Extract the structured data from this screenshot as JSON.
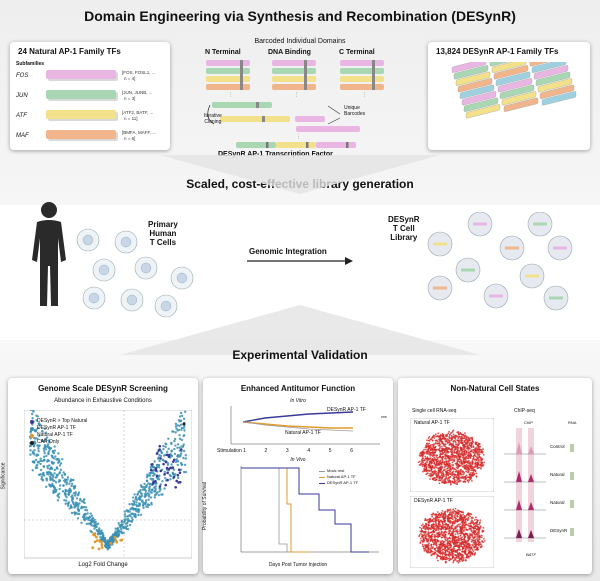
{
  "header": {
    "title": "Domain Engineering via Synthesis and Recombination (DESynR)"
  },
  "top": {
    "left_panel": {
      "title": "24 Natural AP-1 Family TFs",
      "subfamilies_label": "Subfamilies",
      "families": [
        {
          "name": "FOS",
          "members": "[FOS, FOSL1, ...",
          "count": "n = 4]",
          "color": "#e9b6e4"
        },
        {
          "name": "JUN",
          "members": "[JUN, JUNB, ...",
          "count": "n = 3]",
          "color": "#a9d7b4"
        },
        {
          "name": "ATF",
          "members": "[ATF2, BATF, ...",
          "count": "n = 11]",
          "color": "#f3e08a"
        },
        {
          "name": "MAF",
          "members": "[BMFA, MAFF, ...",
          "count": "n = 6]",
          "color": "#f0b58a"
        }
      ]
    },
    "middle_panel": {
      "barcoded_label": "Barcoded Individual Domains",
      "n_terminal": "N Terminal",
      "dna_binding": "DNA Binding",
      "c_terminal": "C Terminal",
      "iterative_cloning": "Iterative\nCloning",
      "unique_barcodes": "Unique\nBarcodes",
      "bottom_label": "DESynR AP-1 Transcription Factor"
    },
    "right_panel": {
      "title": "13,824 DESynR AP-1 Family TFs"
    }
  },
  "scaled_label": "Scaled, cost-effective library generation",
  "middle": {
    "primary_label": "Primary\nHuman\nT Cells",
    "genomic_label": "Genomic Integration",
    "library_label": "DESynR\nT Cell\nLibrary"
  },
  "validation_label": "Experimental Validation",
  "bottom": {
    "screening": {
      "title": "Genome Scale DESynR Screening",
      "subtitle": "Abundance in Exhaustive Conditions",
      "legend": [
        {
          "label": "DESynR > Top Natural",
          "color": "#3a3a9a"
        },
        {
          "label": "DESynR AP-1 TF",
          "color": "#3a8fb3"
        },
        {
          "label": "Natural AP-1 TF",
          "color": "#e39a2c"
        },
        {
          "label": "CAR Only",
          "color": "#222222"
        }
      ],
      "ylabel": "Significance",
      "xlabel": "Log2 Fold Change"
    },
    "antitumor": {
      "title": "Enhanced Antitumor Function",
      "in_vitro": "In Vitro",
      "in_vivo": "In Vivo",
      "desynr_label": "DESynR AP-1 TF",
      "natural_label": "Natural AP-1 TF",
      "stimulation_label": "Stimulation",
      "stim_ticks": [
        "1",
        "2",
        "3",
        "4",
        "5",
        "6"
      ],
      "ylabel": "Probability of Survival",
      "xlabel": "Days Post Tumor Injection",
      "vivo_legend": [
        "Mock rest",
        "Natural AP-1 TF",
        "DESynR AP-1 TF"
      ],
      "significance": "***"
    },
    "nonnatural": {
      "title": "Non-Natural Cell States",
      "scrna_label": "Single cell RNA-seq",
      "chip_label": "ChIP-seq",
      "natural_label": "Natural AP-1 TF",
      "desynr_label": "DESynR AP-1 TF",
      "chip_header": "ChIP",
      "rna_header": "RNA",
      "rows": [
        "Control",
        "Natural",
        "Natural",
        "DESynR"
      ],
      "gene_label": "BATF"
    }
  }
}
